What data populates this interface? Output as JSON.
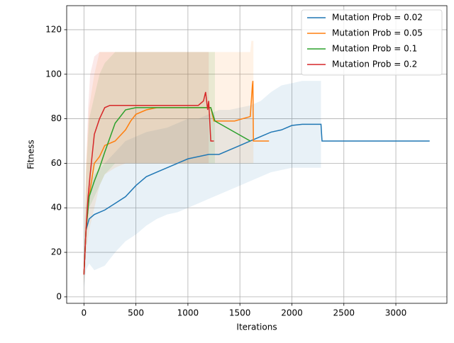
{
  "chart_data": {
    "type": "line",
    "xlabel": "Iterations",
    "ylabel": "Fitness",
    "xlim": [
      -166,
      3491
    ],
    "ylim": [
      -2.9,
      130.8
    ],
    "xticks": [
      0,
      500,
      1000,
      1500,
      2000,
      2500,
      3000
    ],
    "yticks": [
      0,
      20,
      40,
      60,
      80,
      100,
      120
    ],
    "grid": true,
    "legend": "upper right",
    "series": [
      {
        "name": "Mutation Prob = 0.02",
        "color": "#1f77b4",
        "x": [
          0,
          20,
          50,
          100,
          200,
          300,
          400,
          500,
          600,
          700,
          800,
          900,
          1000,
          1100,
          1200,
          1300,
          1400,
          1500,
          1600,
          1700,
          1800,
          1900,
          2000,
          2100,
          2280,
          2290,
          3325
        ],
        "values": [
          10,
          30,
          35,
          37,
          39,
          42,
          45,
          50,
          54,
          56,
          58,
          60,
          62,
          63,
          64,
          64,
          66,
          68,
          70,
          72,
          74,
          75,
          77,
          77.5,
          77.5,
          70,
          70
        ],
        "lower": [
          4,
          12,
          15,
          12,
          14,
          20,
          25,
          28,
          32,
          35,
          37,
          38,
          40,
          42,
          44,
          46,
          48,
          50,
          52,
          54,
          56,
          57,
          58,
          58,
          58,
          null,
          null
        ],
        "upper": [
          15,
          40,
          50,
          55,
          60,
          65,
          70,
          72,
          74,
          75,
          76,
          78,
          80,
          80,
          82,
          84,
          84,
          85,
          86,
          88,
          92,
          95,
          96,
          97,
          97,
          null,
          null
        ]
      },
      {
        "name": "Mutation Prob = 0.05",
        "color": "#ff7f0e",
        "x": [
          0,
          20,
          50,
          100,
          150,
          200,
          300,
          400,
          450,
          500,
          600,
          700,
          1000,
          1200,
          1220,
          1250,
          1450,
          1600,
          1610,
          1620,
          1625,
          1630,
          1640,
          1780
        ],
        "values": [
          10,
          30,
          45,
          60,
          63,
          68,
          70,
          75,
          79,
          82,
          84,
          85,
          85,
          85,
          85,
          79,
          79,
          81,
          88,
          95,
          97,
          70,
          70,
          70
        ],
        "lower": [
          5,
          20,
          30,
          40,
          50,
          55,
          58,
          60,
          60,
          60,
          60,
          60,
          60,
          60,
          60,
          60,
          60,
          60,
          60,
          60,
          60,
          60,
          null,
          null
        ],
        "upper": [
          15,
          60,
          85,
          100,
          110,
          110,
          110,
          110,
          110,
          110,
          110,
          110,
          110,
          110,
          110,
          110,
          110,
          110,
          115,
          115,
          115,
          115,
          null,
          null
        ]
      },
      {
        "name": "Mutation Prob = 0.1",
        "color": "#2ca02c",
        "x": [
          0,
          20,
          50,
          100,
          150,
          200,
          300,
          400,
          500,
          1200,
          1220,
          1260,
          1600
        ],
        "values": [
          10,
          30,
          45,
          52,
          58,
          65,
          78,
          84,
          85,
          85,
          85,
          79,
          70
        ],
        "lower": [
          5,
          25,
          40,
          45,
          50,
          55,
          60,
          60,
          60,
          60,
          60,
          60,
          null
        ],
        "upper": [
          15,
          55,
          80,
          90,
          100,
          105,
          110,
          110,
          110,
          110,
          110,
          110,
          null
        ]
      },
      {
        "name": "Mutation Prob = 0.2",
        "color": "#d62728",
        "x": [
          0,
          20,
          40,
          60,
          100,
          150,
          200,
          250,
          1100,
          1150,
          1170,
          1190,
          1200,
          1220,
          1250
        ],
        "values": [
          10,
          30,
          45,
          55,
          73,
          80,
          85,
          86,
          86,
          88,
          92,
          84,
          88,
          70,
          70
        ],
        "lower": [
          5,
          25,
          40,
          50,
          60,
          60,
          60,
          60,
          60,
          60,
          60,
          60,
          60,
          60,
          null
        ],
        "upper": [
          15,
          55,
          85,
          100,
          108,
          110,
          110,
          110,
          110,
          110,
          110,
          110,
          110,
          null,
          null
        ]
      }
    ]
  }
}
